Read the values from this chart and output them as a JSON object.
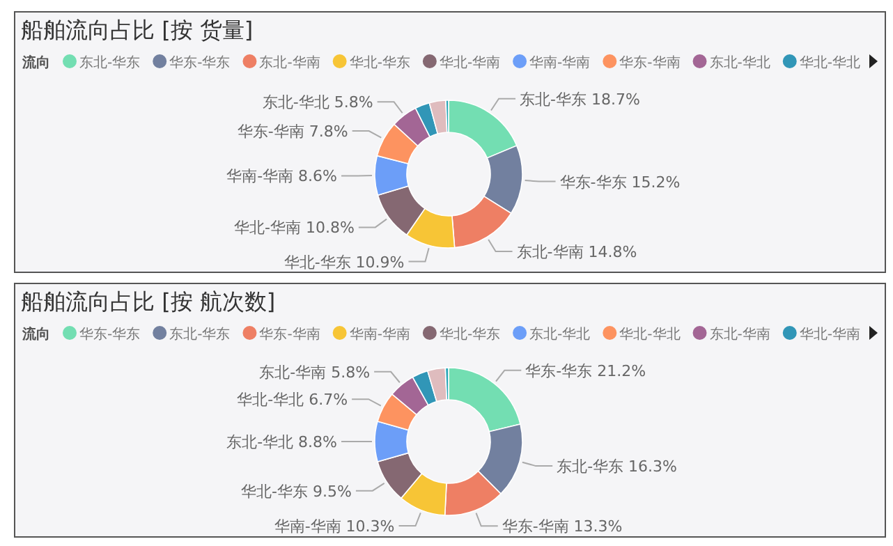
{
  "chart_data": [
    {
      "type": "donut",
      "title": "船舶流向占比 [按 货量]",
      "legend_title": "流向",
      "legend": "top",
      "categories": [
        "东北-华东",
        "华东-华东",
        "东北-华南",
        "华北-华东",
        "华北-华南",
        "华南-华南",
        "华东-华南",
        "东北-华北",
        "华北-华北",
        null,
        null
      ],
      "values": [
        18.7,
        15.2,
        14.8,
        10.9,
        10.8,
        8.6,
        7.8,
        5.8,
        3.2,
        3.6,
        0.6
      ],
      "colors": [
        "#73deb2",
        "#72809f",
        "#ee7f64",
        "#f7c536",
        "#856872",
        "#6c9ef8",
        "#fd9360",
        "#a36695",
        "#3196b7",
        "#dfbcbe",
        "#2aa6b8"
      ],
      "value_labels": [
        "东北-华东 18.7%",
        "华东-华东 15.2%",
        "东北-华南 14.8%",
        "华北-华东 10.9%",
        "华北-华南 10.8%",
        "华南-华南 8.6%",
        "华东-华南 7.8%",
        "东北-华北 5.8%",
        null,
        null,
        null
      ]
    },
    {
      "type": "donut",
      "title": "船舶流向占比 [按 航次数]",
      "legend_title": "流向",
      "legend": "top",
      "categories": [
        "华东-华东",
        "东北-华东",
        "华东-华南",
        "华南-华南",
        "华北-华东",
        "东北-华北",
        "华北-华北",
        "东北-华南",
        "华北-华南",
        null,
        null
      ],
      "values": [
        21.2,
        16.3,
        13.3,
        10.3,
        9.5,
        8.8,
        6.7,
        5.8,
        3.5,
        3.9,
        0.7
      ],
      "colors": [
        "#73deb2",
        "#72809f",
        "#ee7f64",
        "#f7c536",
        "#856872",
        "#6c9ef8",
        "#fd9360",
        "#a36695",
        "#3196b7",
        "#dfbcbe",
        "#2aa6b8"
      ],
      "value_labels": [
        "华东-华东 21.2%",
        "东北-华东 16.3%",
        "华东-华南 13.3%",
        "华南-华南 10.3%",
        "华北-华东 9.5%",
        "东北-华北 8.8%",
        "华北-华北 6.7%",
        "东北-华南 5.8%",
        null,
        null,
        null
      ]
    }
  ]
}
